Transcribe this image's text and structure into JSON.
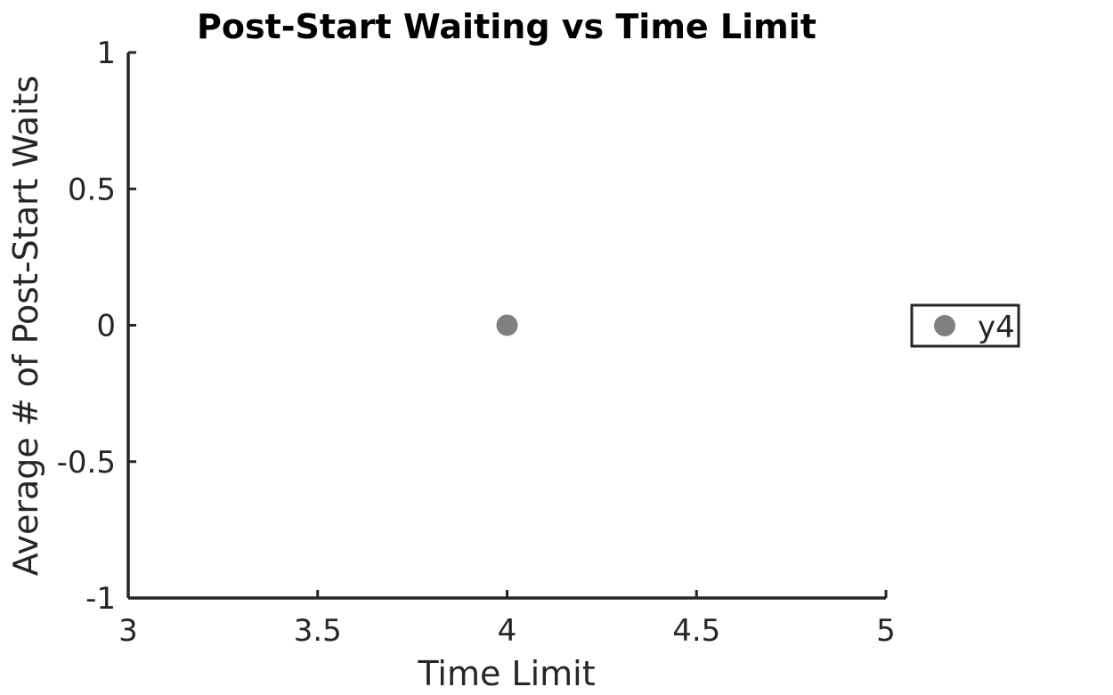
{
  "chart_data": {
    "type": "scatter",
    "title": "Post-Start Waiting vs Time Limit",
    "xlabel": "Time Limit",
    "ylabel": "Average # of Post-Start Waits",
    "xlim": [
      3,
      5
    ],
    "ylim": [
      -1,
      1
    ],
    "x_ticks": [
      3,
      3.5,
      4,
      4.5,
      5
    ],
    "x_tick_labels": [
      "3",
      "3.5",
      "4",
      "4.5",
      "5"
    ],
    "y_ticks": [
      -1,
      -0.5,
      0,
      0.5,
      1
    ],
    "y_tick_labels": [
      "-1",
      "-0.5",
      "0",
      "0.5",
      "1"
    ],
    "grid": false,
    "legend_position": "right",
    "series": [
      {
        "name": "y4",
        "color": "#808080",
        "marker": "circle",
        "points": [
          {
            "x": 4,
            "y": 0
          }
        ]
      }
    ]
  }
}
